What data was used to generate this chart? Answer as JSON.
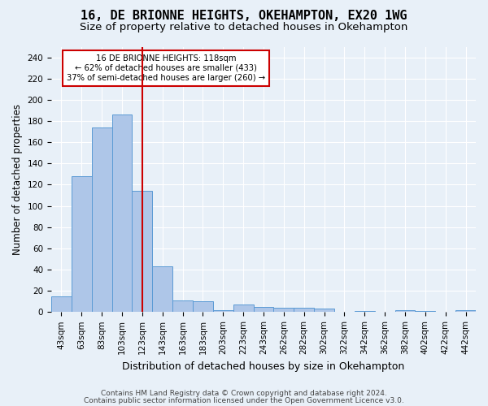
{
  "title": "16, DE BRIONNE HEIGHTS, OKEHAMPTON, EX20 1WG",
  "subtitle": "Size of property relative to detached houses in Okehampton",
  "xlabel": "Distribution of detached houses by size in Okehampton",
  "ylabel": "Number of detached properties",
  "bar_values": [
    15,
    128,
    174,
    186,
    114,
    43,
    11,
    10,
    2,
    7,
    5,
    4,
    4,
    3,
    0,
    1,
    0,
    2,
    1,
    0,
    2
  ],
  "bar_labels": [
    "43sqm",
    "63sqm",
    "83sqm",
    "103sqm",
    "123sqm",
    "143sqm",
    "163sqm",
    "183sqm",
    "203sqm",
    "223sqm",
    "243sqm",
    "262sqm",
    "282sqm",
    "302sqm",
    "322sqm",
    "342sqm",
    "362sqm",
    "382sqm",
    "402sqm",
    "422sqm",
    "442sqm"
  ],
  "bar_color": "#aec6e8",
  "bar_edge_color": "#5b9bd5",
  "ylim": [
    0,
    250
  ],
  "yticks": [
    0,
    20,
    40,
    60,
    80,
    100,
    120,
    140,
    160,
    180,
    200,
    220,
    240
  ],
  "vline_x": 4,
  "vline_color": "#cc0000",
  "annotation_title": "16 DE BRIONNE HEIGHTS: 118sqm",
  "annotation_line1": "← 62% of detached houses are smaller (433)",
  "annotation_line2": "37% of semi-detached houses are larger (260) →",
  "annotation_box_color": "#ffffff",
  "annotation_box_edge": "#cc0000",
  "background_color": "#e8f0f8",
  "footer1": "Contains HM Land Registry data © Crown copyright and database right 2024.",
  "footer2": "Contains public sector information licensed under the Open Government Licence v3.0.",
  "grid_color": "#ffffff",
  "title_fontsize": 11,
  "subtitle_fontsize": 9.5,
  "xlabel_fontsize": 9,
  "ylabel_fontsize": 8.5,
  "tick_fontsize": 7.5,
  "footer_fontsize": 6.5
}
